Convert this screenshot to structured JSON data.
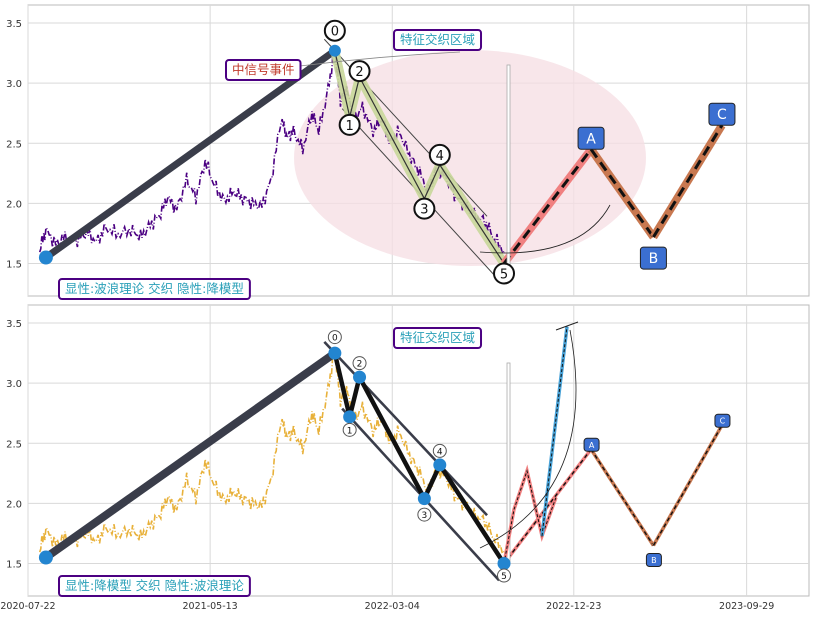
{
  "colors": {
    "panel_bg": "#ffffff",
    "grid": "#d9d9d9",
    "axis_text": "#333333",
    "price_top": "#4b0082",
    "price_bottom": "#e8b13a",
    "wave_line": "#3a3d4a",
    "marker_blue": "#2385d0",
    "box_blue": "#3b6fd1",
    "label_border": "#4b0082",
    "label_text_teal": "#2aa0b8",
    "label_text_red": "#c0392b",
    "ellipse_fill": "#f5dde3",
    "wave_band": "#c8d79a",
    "proj_red": "#f08080",
    "proj_brown": "#c87850",
    "proj_blue": "#4aa3d8"
  },
  "chart_data": [
    {
      "type": "line",
      "panel": "top",
      "ylim": [
        1.23,
        3.65
      ],
      "yticks": [
        "1.5",
        "2.0",
        "2.5",
        "3.0",
        "3.5"
      ],
      "ytick_values": [
        1.5,
        2.0,
        2.5,
        3.0,
        3.5
      ],
      "x_ticks": [
        "2020-07-22",
        "2021-05-13",
        "2022-03-04",
        "2022-12-23",
        "2023-09-29"
      ],
      "x_tick_dates": [
        "2020-07-22",
        "2021-05-13",
        "2022-03-04",
        "2022-12-23",
        "2023-09-29"
      ],
      "xlim": [
        "2020-07-22",
        "2024-01-08"
      ],
      "price_series": [
        [
          "2020-08-10",
          1.62
        ],
        [
          "2020-08-20",
          1.78
        ],
        [
          "2020-09-05",
          1.66
        ],
        [
          "2020-09-20",
          1.72
        ],
        [
          "2020-10-10",
          1.7
        ],
        [
          "2020-10-25",
          1.76
        ],
        [
          "2020-11-10",
          1.68
        ],
        [
          "2020-11-25",
          1.8
        ],
        [
          "2020-12-15",
          1.74
        ],
        [
          "2021-01-05",
          1.78
        ],
        [
          "2021-01-20",
          1.72
        ],
        [
          "2021-02-05",
          1.82
        ],
        [
          "2021-02-20",
          1.9
        ],
        [
          "2021-03-05",
          2.05
        ],
        [
          "2021-03-20",
          1.95
        ],
        [
          "2021-04-05",
          2.2
        ],
        [
          "2021-04-20",
          2.05
        ],
        [
          "2021-05-05",
          2.35
        ],
        [
          "2021-05-20",
          2.15
        ],
        [
          "2021-06-05",
          2.02
        ],
        [
          "2021-06-20",
          2.1
        ],
        [
          "2021-07-05",
          2.04
        ],
        [
          "2021-07-20",
          2.0
        ],
        [
          "2021-08-05",
          1.98
        ],
        [
          "2021-08-20",
          2.2
        ],
        [
          "2021-09-05",
          2.7
        ],
        [
          "2021-09-15",
          2.55
        ],
        [
          "2021-09-25",
          2.6
        ],
        [
          "2021-10-10",
          2.45
        ],
        [
          "2021-10-25",
          2.75
        ],
        [
          "2021-11-05",
          2.6
        ],
        [
          "2021-11-20",
          2.95
        ],
        [
          "2021-12-01",
          3.28
        ],
        [
          "2021-12-10",
          2.85
        ],
        [
          "2021-12-20",
          2.95
        ],
        [
          "2022-01-01",
          2.7
        ],
        [
          "2022-01-15",
          2.8
        ],
        [
          "2022-02-01",
          2.6
        ],
        [
          "2022-02-15",
          2.7
        ],
        [
          "2022-03-01",
          2.5
        ],
        [
          "2022-03-15",
          2.6
        ],
        [
          "2022-04-01",
          2.4
        ],
        [
          "2022-04-15",
          2.28
        ],
        [
          "2022-05-01",
          2.1
        ],
        [
          "2022-05-15",
          2.3
        ],
        [
          "2022-06-01",
          2.2
        ],
        [
          "2022-06-15",
          2.05
        ],
        [
          "2022-07-01",
          1.98
        ],
        [
          "2022-07-15",
          1.9
        ],
        [
          "2022-08-01",
          1.85
        ],
        [
          "2022-08-15",
          1.72
        ],
        [
          "2022-09-01",
          1.6
        ]
      ],
      "wave_points": [
        {
          "label": "0",
          "date": "2021-12-01",
          "value": 3.27
        },
        {
          "label": "1",
          "date": "2021-12-25",
          "value": 2.72
        },
        {
          "label": "2",
          "date": "2022-01-10",
          "value": 3.05
        },
        {
          "label": "3",
          "date": "2022-04-25",
          "value": 2.04
        },
        {
          "label": "4",
          "date": "2022-05-20",
          "value": 2.32
        },
        {
          "label": "5",
          "date": "2022-09-01",
          "value": 1.5
        }
      ],
      "start_point": {
        "date": "2020-08-20",
        "value": 1.55
      },
      "projection": [
        {
          "label": "A",
          "date": "2023-01-20",
          "value": 2.45
        },
        {
          "label": "B",
          "date": "2023-05-01",
          "value": 1.72
        },
        {
          "label": "C",
          "date": "2023-08-20",
          "value": 2.65
        }
      ],
      "annotations": {
        "event": "中信号事件",
        "zone": "特征交织区域",
        "footer": "显性:波浪理论 交织 隐性:降模型"
      }
    },
    {
      "type": "line",
      "panel": "bottom",
      "ylim": [
        1.23,
        3.65
      ],
      "yticks": [
        "1.5",
        "2.0",
        "2.5",
        "3.0",
        "3.5"
      ],
      "ytick_values": [
        1.5,
        2.0,
        2.5,
        3.0,
        3.5
      ],
      "x_ticks": [
        "2020-07-22",
        "2021-05-13",
        "2022-03-04",
        "2022-12-23",
        "2023-09-29"
      ],
      "x_tick_dates": [
        "2020-07-22",
        "2021-05-13",
        "2022-03-04",
        "2022-12-23",
        "2023-09-29"
      ],
      "xlim": [
        "2020-07-22",
        "2024-01-08"
      ],
      "wave_points": [
        {
          "label": "0",
          "date": "2021-12-01",
          "value": 3.25
        },
        {
          "label": "1",
          "date": "2021-12-25",
          "value": 2.72
        },
        {
          "label": "2",
          "date": "2022-01-10",
          "value": 3.05
        },
        {
          "label": "3",
          "date": "2022-04-25",
          "value": 2.04
        },
        {
          "label": "4",
          "date": "2022-05-20",
          "value": 2.32
        },
        {
          "label": "5",
          "date": "2022-09-01",
          "value": 1.5
        }
      ],
      "start_point": {
        "date": "2020-08-20",
        "value": 1.55
      },
      "projection": [
        {
          "label": "A",
          "date": "2023-01-20",
          "value": 2.45
        },
        {
          "label": "B",
          "date": "2023-05-01",
          "value": 1.65
        },
        {
          "label": "C",
          "date": "2023-08-20",
          "value": 2.65
        }
      ],
      "annotations": {
        "zone": "特征交织区域",
        "footer": "显性:降模型 交织 隐性:波浪理论"
      }
    }
  ]
}
